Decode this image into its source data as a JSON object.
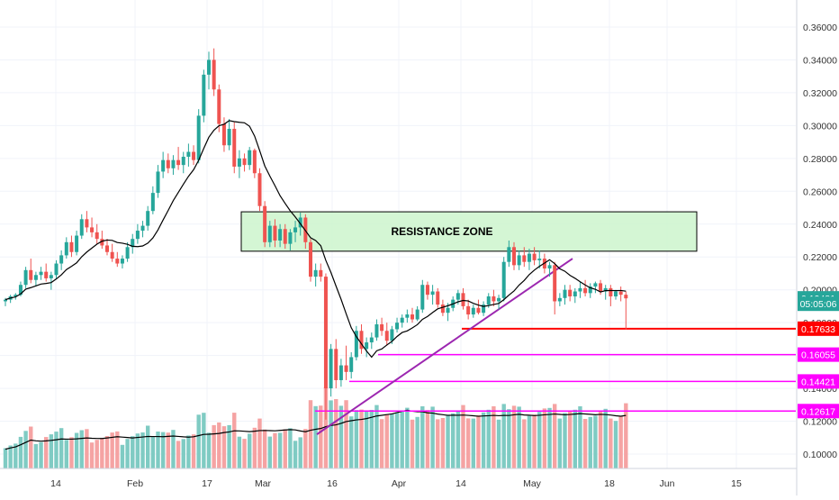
{
  "chart_data": {
    "type": "candlestick",
    "price_axis_ticks": [
      "0.10000",
      "0.12000",
      "0.14000",
      "0.16000",
      "0.18000",
      "0.20000",
      "0.22000",
      "0.24000",
      "0.26000",
      "0.28000",
      "0.30000",
      "0.32000",
      "0.34000",
      "0.36000"
    ],
    "x_axis_ticks": [
      "14",
      "Feb",
      "17",
      "Mar",
      "16",
      "Apr",
      "14",
      "May",
      "18",
      "Jun",
      "15"
    ],
    "annotation": "RESISTANCE ZONE",
    "price_labels": [
      {
        "text": "0.19481",
        "color": "#26a69a",
        "price": 0.19481
      },
      {
        "text": "05:05:06",
        "color": "#26a69a",
        "price": 0.1915
      },
      {
        "text": "0.17633",
        "color": "#ff0000",
        "price": 0.17633
      },
      {
        "text": "0.16055",
        "color": "#ff00ff",
        "price": 0.16055
      },
      {
        "text": "0.14421",
        "color": "#ff00ff",
        "price": 0.14421
      },
      {
        "text": "0.12617",
        "color": "#ff00ff",
        "price": 0.12617
      }
    ],
    "horizontal_lines": [
      {
        "price": 0.17633,
        "color": "#ff0000"
      },
      {
        "price": 0.16055,
        "color": "#ff00ff"
      },
      {
        "price": 0.14421,
        "color": "#ff00ff"
      },
      {
        "price": 0.12617,
        "color": "#ff00ff"
      }
    ],
    "resistance_zone": {
      "price_low": 0.2235,
      "price_high": 0.2475
    },
    "trendlines": [
      {
        "from_price": 0.112,
        "to_price": 0.219,
        "color": "#9c27b0"
      }
    ],
    "candles": [
      [
        0.193,
        0.195,
        0.19,
        0.194
      ],
      [
        0.194,
        0.197,
        0.192,
        0.196
      ],
      [
        0.196,
        0.198,
        0.194,
        0.197
      ],
      [
        0.197,
        0.205,
        0.196,
        0.203
      ],
      [
        0.203,
        0.214,
        0.201,
        0.212
      ],
      [
        0.212,
        0.219,
        0.204,
        0.206
      ],
      [
        0.206,
        0.211,
        0.202,
        0.209
      ],
      [
        0.209,
        0.214,
        0.206,
        0.211
      ],
      [
        0.211,
        0.216,
        0.205,
        0.207
      ],
      [
        0.207,
        0.211,
        0.2,
        0.209
      ],
      [
        0.209,
        0.218,
        0.207,
        0.216
      ],
      [
        0.216,
        0.224,
        0.212,
        0.221
      ],
      [
        0.221,
        0.232,
        0.219,
        0.229
      ],
      [
        0.229,
        0.233,
        0.22,
        0.223
      ],
      [
        0.223,
        0.236,
        0.221,
        0.233
      ],
      [
        0.233,
        0.246,
        0.231,
        0.243
      ],
      [
        0.243,
        0.248,
        0.235,
        0.238
      ],
      [
        0.238,
        0.244,
        0.232,
        0.235
      ],
      [
        0.235,
        0.24,
        0.228,
        0.231
      ],
      [
        0.231,
        0.236,
        0.225,
        0.227
      ],
      [
        0.227,
        0.231,
        0.221,
        0.223
      ],
      [
        0.223,
        0.228,
        0.217,
        0.219
      ],
      [
        0.219,
        0.223,
        0.214,
        0.216
      ],
      [
        0.216,
        0.221,
        0.213,
        0.219
      ],
      [
        0.219,
        0.229,
        0.217,
        0.226
      ],
      [
        0.226,
        0.234,
        0.222,
        0.231
      ],
      [
        0.231,
        0.24,
        0.228,
        0.236
      ],
      [
        0.236,
        0.242,
        0.232,
        0.239
      ],
      [
        0.239,
        0.251,
        0.236,
        0.248
      ],
      [
        0.248,
        0.263,
        0.246,
        0.259
      ],
      [
        0.259,
        0.276,
        0.256,
        0.272
      ],
      [
        0.272,
        0.284,
        0.268,
        0.279
      ],
      [
        0.279,
        0.283,
        0.271,
        0.274
      ],
      [
        0.274,
        0.282,
        0.27,
        0.279
      ],
      [
        0.279,
        0.287,
        0.273,
        0.276
      ],
      [
        0.276,
        0.284,
        0.271,
        0.281
      ],
      [
        0.281,
        0.289,
        0.275,
        0.284
      ],
      [
        0.284,
        0.288,
        0.276,
        0.279
      ],
      [
        0.279,
        0.31,
        0.277,
        0.306
      ],
      [
        0.306,
        0.334,
        0.302,
        0.331
      ],
      [
        0.331,
        0.345,
        0.322,
        0.34
      ],
      [
        0.34,
        0.347,
        0.318,
        0.322
      ],
      [
        0.322,
        0.325,
        0.296,
        0.301
      ],
      [
        0.301,
        0.305,
        0.284,
        0.288
      ],
      [
        0.288,
        0.304,
        0.285,
        0.298
      ],
      [
        0.298,
        0.302,
        0.271,
        0.275
      ],
      [
        0.275,
        0.285,
        0.268,
        0.28
      ],
      [
        0.28,
        0.283,
        0.272,
        0.276
      ],
      [
        0.276,
        0.287,
        0.273,
        0.285
      ],
      [
        0.285,
        0.286,
        0.268,
        0.271
      ],
      [
        0.271,
        0.274,
        0.248,
        0.251
      ],
      [
        0.251,
        0.254,
        0.226,
        0.229
      ],
      [
        0.229,
        0.242,
        0.226,
        0.239
      ],
      [
        0.239,
        0.243,
        0.226,
        0.23
      ],
      [
        0.23,
        0.24,
        0.226,
        0.237
      ],
      [
        0.237,
        0.24,
        0.225,
        0.228
      ],
      [
        0.228,
        0.237,
        0.224,
        0.235
      ],
      [
        0.235,
        0.242,
        0.229,
        0.238
      ],
      [
        0.238,
        0.247,
        0.233,
        0.244
      ],
      [
        0.244,
        0.246,
        0.225,
        0.229
      ],
      [
        0.229,
        0.231,
        0.205,
        0.208
      ],
      [
        0.208,
        0.216,
        0.202,
        0.212
      ],
      [
        0.212,
        0.216,
        0.205,
        0.208
      ],
      [
        0.208,
        0.21,
        0.121,
        0.14
      ],
      [
        0.14,
        0.167,
        0.135,
        0.164
      ],
      [
        0.164,
        0.17,
        0.14,
        0.145
      ],
      [
        0.145,
        0.158,
        0.141,
        0.154
      ],
      [
        0.154,
        0.166,
        0.145,
        0.15
      ],
      [
        0.15,
        0.162,
        0.146,
        0.159
      ],
      [
        0.159,
        0.178,
        0.157,
        0.175
      ],
      [
        0.175,
        0.179,
        0.161,
        0.164
      ],
      [
        0.164,
        0.171,
        0.159,
        0.168
      ],
      [
        0.168,
        0.174,
        0.164,
        0.171
      ],
      [
        0.171,
        0.182,
        0.169,
        0.179
      ],
      [
        0.179,
        0.183,
        0.172,
        0.175
      ],
      [
        0.175,
        0.18,
        0.166,
        0.169
      ],
      [
        0.169,
        0.178,
        0.167,
        0.176
      ],
      [
        0.176,
        0.183,
        0.174,
        0.18
      ],
      [
        0.18,
        0.185,
        0.177,
        0.183
      ],
      [
        0.183,
        0.188,
        0.18,
        0.185
      ],
      [
        0.185,
        0.189,
        0.18,
        0.182
      ],
      [
        0.182,
        0.19,
        0.181,
        0.188
      ],
      [
        0.188,
        0.206,
        0.186,
        0.203
      ],
      [
        0.203,
        0.205,
        0.194,
        0.197
      ],
      [
        0.197,
        0.203,
        0.191,
        0.199
      ],
      [
        0.199,
        0.201,
        0.189,
        0.191
      ],
      [
        0.191,
        0.194,
        0.184,
        0.186
      ],
      [
        0.186,
        0.192,
        0.181,
        0.189
      ],
      [
        0.189,
        0.196,
        0.187,
        0.194
      ],
      [
        0.194,
        0.2,
        0.191,
        0.198
      ],
      [
        0.198,
        0.201,
        0.188,
        0.19
      ],
      [
        0.19,
        0.194,
        0.182,
        0.185
      ],
      [
        0.185,
        0.191,
        0.183,
        0.189
      ],
      [
        0.189,
        0.194,
        0.185,
        0.186
      ],
      [
        0.186,
        0.193,
        0.184,
        0.191
      ],
      [
        0.191,
        0.198,
        0.189,
        0.196
      ],
      [
        0.196,
        0.2,
        0.19,
        0.193
      ],
      [
        0.193,
        0.197,
        0.188,
        0.195
      ],
      [
        0.195,
        0.22,
        0.193,
        0.217
      ],
      [
        0.217,
        0.23,
        0.214,
        0.226
      ],
      [
        0.226,
        0.229,
        0.212,
        0.215
      ],
      [
        0.215,
        0.224,
        0.212,
        0.221
      ],
      [
        0.221,
        0.226,
        0.214,
        0.217
      ],
      [
        0.217,
        0.225,
        0.212,
        0.222
      ],
      [
        0.222,
        0.226,
        0.215,
        0.218
      ],
      [
        0.218,
        0.224,
        0.213,
        0.219
      ],
      [
        0.219,
        0.222,
        0.21,
        0.213
      ],
      [
        0.213,
        0.217,
        0.208,
        0.215
      ],
      [
        0.215,
        0.217,
        0.185,
        0.193
      ],
      [
        0.193,
        0.198,
        0.19,
        0.195
      ],
      [
        0.195,
        0.203,
        0.191,
        0.2
      ],
      [
        0.2,
        0.203,
        0.193,
        0.196
      ],
      [
        0.196,
        0.201,
        0.192,
        0.199
      ],
      [
        0.199,
        0.205,
        0.195,
        0.201
      ],
      [
        0.201,
        0.206,
        0.196,
        0.198
      ],
      [
        0.198,
        0.204,
        0.195,
        0.202
      ],
      [
        0.202,
        0.205,
        0.198,
        0.204
      ],
      [
        0.204,
        0.206,
        0.197,
        0.199
      ],
      [
        0.199,
        0.203,
        0.194,
        0.201
      ],
      [
        0.201,
        0.203,
        0.19,
        0.196
      ],
      [
        0.196,
        0.2,
        0.194,
        0.199
      ],
      [
        0.199,
        0.202,
        0.193,
        0.197
      ],
      [
        0.197,
        0.199,
        0.176,
        0.1948
      ]
    ],
    "moving_average_color": "#000000",
    "volume_colors": {
      "up": "#7fcbc3",
      "down": "#f5a3a3"
    },
    "candle_colors": {
      "up": "#26a69a",
      "down": "#ef5350"
    }
  }
}
